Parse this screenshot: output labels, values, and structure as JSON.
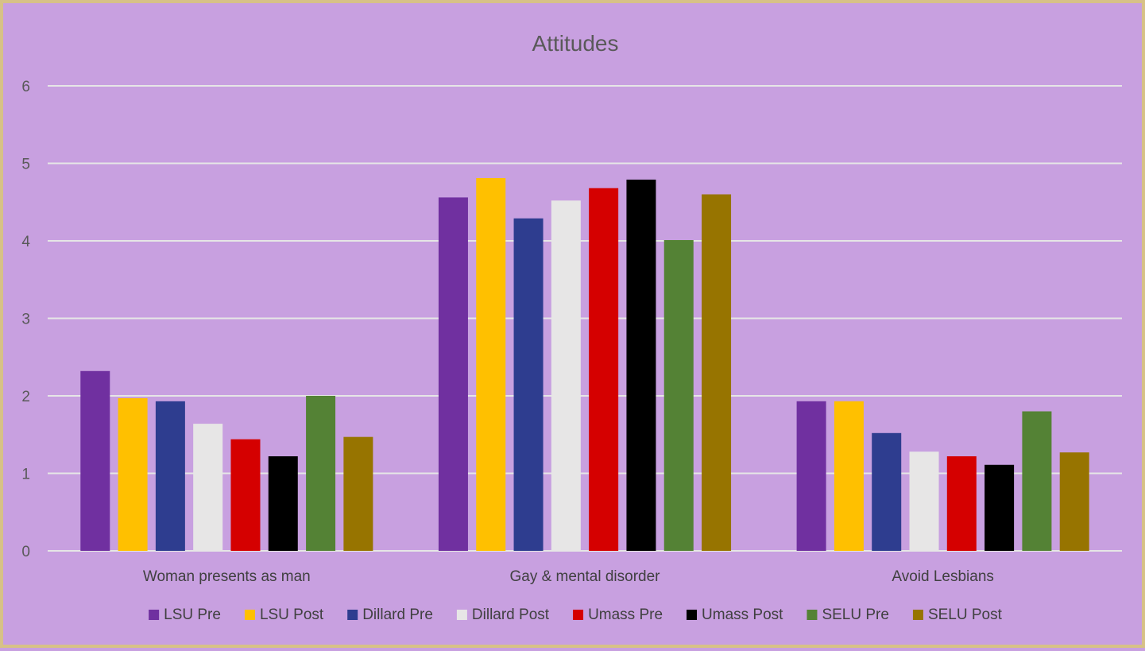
{
  "chart_data": {
    "type": "bar",
    "title": "Attitudes",
    "xlabel": "",
    "ylabel": "",
    "ylim": [
      0,
      6
    ],
    "yticks": [
      0,
      1,
      2,
      3,
      4,
      5,
      6
    ],
    "grid": true,
    "legend_position": "bottom",
    "categories": [
      "Woman presents as man",
      "Gay & mental disorder",
      "Avoid Lesbians"
    ],
    "series": [
      {
        "name": "LSU Pre",
        "color": "#7030a0",
        "values": [
          2.32,
          4.56,
          1.93
        ]
      },
      {
        "name": "LSU Post",
        "color": "#ffc000",
        "values": [
          1.97,
          4.81,
          1.93
        ]
      },
      {
        "name": "Dillard Pre",
        "color": "#2e3d8f",
        "values": [
          1.93,
          4.29,
          1.52
        ]
      },
      {
        "name": "Dillard Post",
        "color": "#e7e6e6",
        "values": [
          1.64,
          4.52,
          1.28
        ]
      },
      {
        "name": "Umass Pre",
        "color": "#d50000",
        "values": [
          1.44,
          4.68,
          1.22
        ]
      },
      {
        "name": "Umass Post",
        "color": "#000000",
        "values": [
          1.22,
          4.79,
          1.11
        ]
      },
      {
        "name": "SELU Pre",
        "color": "#548235",
        "values": [
          2.0,
          4.01,
          1.8
        ]
      },
      {
        "name": "SELU Post",
        "color": "#977400",
        "values": [
          1.47,
          4.6,
          1.27
        ]
      }
    ]
  }
}
